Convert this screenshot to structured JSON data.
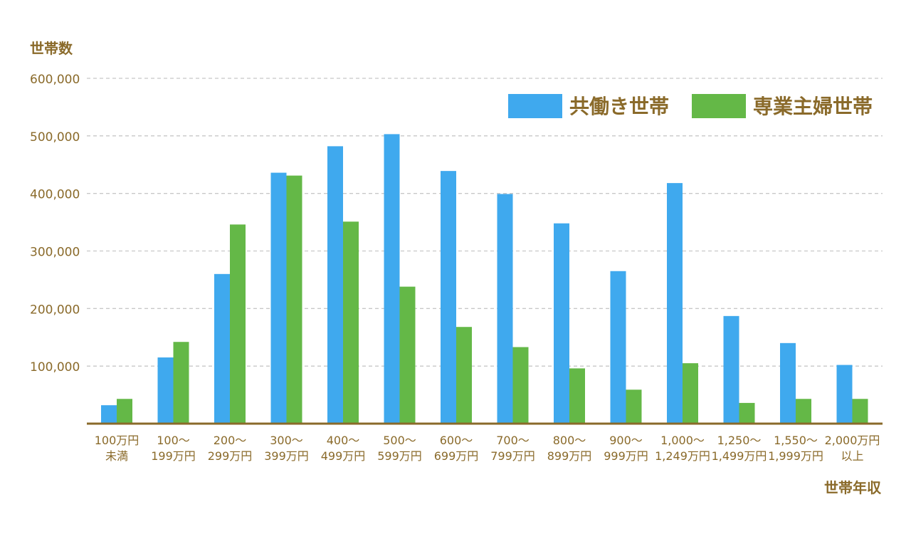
{
  "chart_data": {
    "type": "bar",
    "ylabel": "世帯数",
    "xlabel": "世帯年収",
    "ylim": [
      0,
      600000
    ],
    "yticks": [
      100000,
      200000,
      300000,
      400000,
      500000,
      600000
    ],
    "ytick_labels": [
      "100,000",
      "200,000",
      "300,000",
      "400,000",
      "500,000",
      "600,000"
    ],
    "grid": true,
    "legend_position": "top-right",
    "categories": [
      [
        "100万円",
        "未満"
      ],
      [
        "100〜",
        "199万円"
      ],
      [
        "200〜",
        "299万円"
      ],
      [
        "300〜",
        "399万円"
      ],
      [
        "400〜",
        "499万円"
      ],
      [
        "500〜",
        "599万円"
      ],
      [
        "600〜",
        "699万円"
      ],
      [
        "700〜",
        "799万円"
      ],
      [
        "800〜",
        "899万円"
      ],
      [
        "900〜",
        "999万円"
      ],
      [
        "1,000〜",
        "1,249万円"
      ],
      [
        "1,250〜",
        "1,499万円"
      ],
      [
        "1,550〜",
        "1,999万円"
      ],
      [
        "2,000万円",
        "以上"
      ]
    ],
    "series": [
      {
        "name": "共働き世帯",
        "color": "#3fa9ee",
        "values": [
          32000,
          115000,
          260000,
          436000,
          482000,
          503000,
          439000,
          399000,
          348000,
          265000,
          418000,
          187000,
          140000,
          102000
        ]
      },
      {
        "name": "専業主婦世帯",
        "color": "#64b847",
        "values": [
          43000,
          142000,
          346000,
          431000,
          351000,
          238000,
          168000,
          133000,
          96000,
          59000,
          105000,
          36000,
          43000,
          43000
        ]
      }
    ]
  },
  "colors": {
    "text": "#8a6a2a",
    "axis": "#8a6a2a",
    "grid": "#c8c8c8"
  }
}
